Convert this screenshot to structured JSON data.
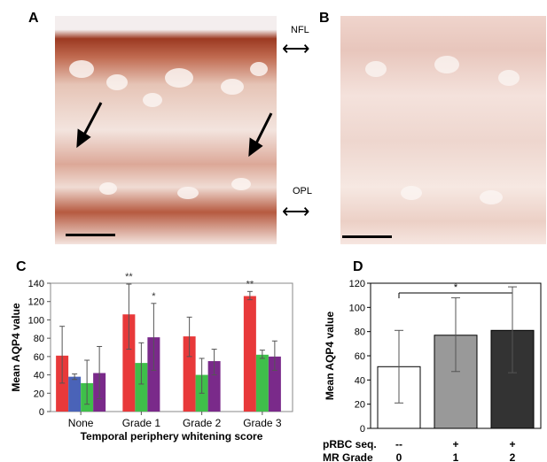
{
  "panels": {
    "a": "A",
    "b": "B",
    "c": "C",
    "d": "D"
  },
  "layer_labels": {
    "nfl": "NFL",
    "opl": "OPL"
  },
  "arrows": {
    "nfl_arrow": "⟷",
    "opl_arrow": "⟷"
  },
  "colors": {
    "red": "#e8393a",
    "blue": "#4a63b8",
    "green": "#3fbf4a",
    "purple": "#7a2a8a",
    "white": "#ffffff",
    "gray": "#999999",
    "dark": "#333333",
    "stain_dark": "#a8452a",
    "stain_light": "#e8c8c0"
  },
  "chart_data": [
    {
      "type": "bar",
      "panel": "C",
      "xlabel": "Temporal periphery whitening score",
      "ylabel": "Mean AQP4 value",
      "ylim": [
        0,
        140
      ],
      "yticks": [
        0,
        20,
        40,
        60,
        80,
        100,
        120,
        140
      ],
      "categories": [
        "None",
        "Grade 1",
        "Grade 2",
        "Grade 3"
      ],
      "series": [
        {
          "color": "red",
          "values": [
            61,
            106,
            82,
            126
          ],
          "err_low": [
            31,
            68,
            60,
            122
          ],
          "err_high": [
            93,
            139,
            103,
            131
          ]
        },
        {
          "color": "blue",
          "values": [
            38,
            null,
            null,
            null
          ],
          "err_low": [
            35,
            null,
            null,
            null
          ],
          "err_high": [
            41,
            null,
            null,
            null
          ]
        },
        {
          "color": "green",
          "values": [
            31,
            53,
            40,
            62
          ],
          "err_low": [
            8,
            30,
            20,
            58
          ],
          "err_high": [
            56,
            75,
            58,
            67
          ]
        },
        {
          "color": "purple",
          "values": [
            42,
            81,
            55,
            60
          ],
          "err_low": [
            14,
            45,
            40,
            45
          ],
          "err_high": [
            71,
            118,
            68,
            77
          ]
        }
      ],
      "annotations": [
        {
          "category": "Grade 1",
          "series_index": 0,
          "text": "**"
        },
        {
          "category": "Grade 1",
          "series_index": 3,
          "text": "*"
        },
        {
          "category": "Grade 3",
          "series_index": 0,
          "text": "**"
        }
      ]
    },
    {
      "type": "bar",
      "panel": "D",
      "ylabel": "Mean AQP4 value",
      "ylim": [
        0,
        120
      ],
      "yticks": [
        0,
        20,
        40,
        60,
        80,
        100,
        120
      ],
      "categories": [
        "0",
        "1",
        "2"
      ],
      "values": [
        51,
        77,
        81
      ],
      "err_low": [
        21,
        47,
        46
      ],
      "err_high": [
        81,
        108,
        117
      ],
      "fills": [
        "white",
        "gray",
        "dark"
      ],
      "row_labels": [
        "pRBC seq.",
        "MR Grade"
      ],
      "prbc_values": [
        "--",
        "+",
        "+"
      ],
      "mr_grade_values": [
        "0",
        "1",
        "2"
      ],
      "significance": {
        "from": "0",
        "to": "2",
        "text": "*"
      }
    }
  ]
}
